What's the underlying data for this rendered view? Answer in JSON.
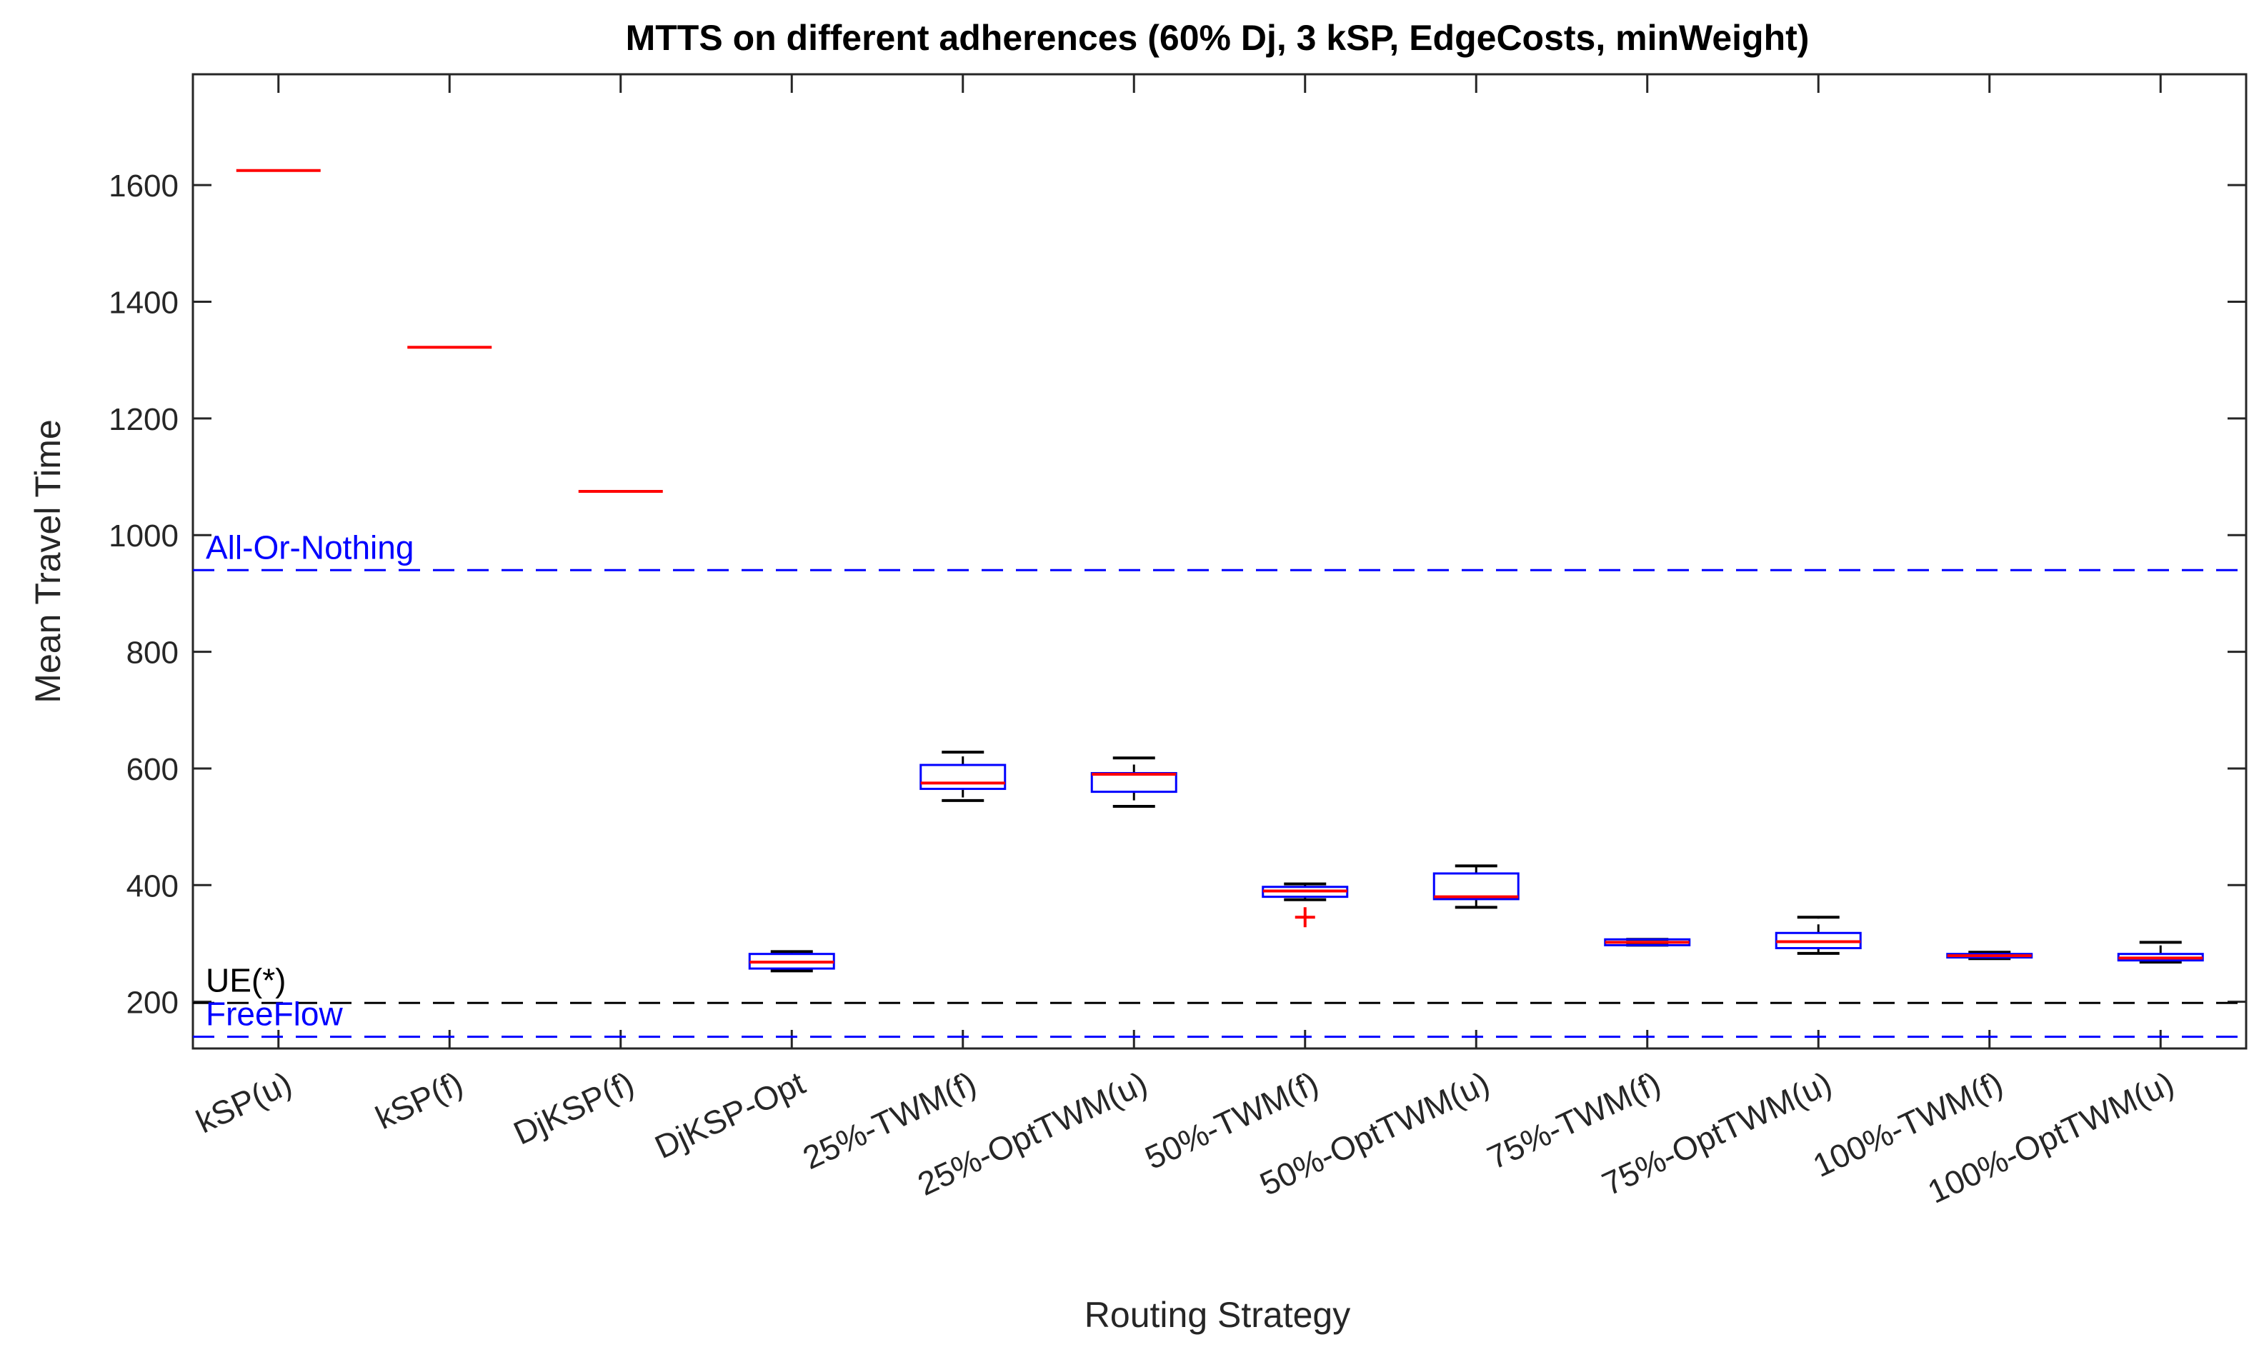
{
  "chart_data": {
    "type": "box",
    "title": "MTTS on different adherences (60% Dj, 3 kSP, EdgeCosts, minWeight)",
    "xlabel": "Routing Strategy",
    "ylabel": "Mean Travel Time",
    "ylim": [
      120,
      1790
    ],
    "yticks": [
      200,
      400,
      600,
      800,
      1000,
      1200,
      1400,
      1600
    ],
    "ytick_labels": [
      "200",
      "400",
      "600",
      "800",
      "1000",
      "1200",
      "1400",
      "1600"
    ],
    "grid": false,
    "categories": [
      "kSP(u)",
      "kSP(f)",
      "DjKSP(f)",
      "DjKSP-Opt",
      "25%-TWM(f)",
      "25%-OptTWM(u)",
      "50%-TWM(f)",
      "50%-OptTWM(u)",
      "75%-TWM(f)",
      "75%-OptTWM(u)",
      "100%-TWM(f)",
      "100%-OptTWM(u)"
    ],
    "boxes": [
      {
        "category": "kSP(u)",
        "whisker_low": 1625,
        "q1": 1625,
        "median": 1625,
        "q3": 1625,
        "whisker_high": 1625,
        "outliers": []
      },
      {
        "category": "kSP(f)",
        "whisker_low": 1322,
        "q1": 1322,
        "median": 1322,
        "q3": 1322,
        "whisker_high": 1322,
        "outliers": []
      },
      {
        "category": "DjKSP(f)",
        "whisker_low": 1075,
        "q1": 1075,
        "median": 1075,
        "q3": 1075,
        "whisker_high": 1075,
        "outliers": []
      },
      {
        "category": "DjKSP-Opt",
        "whisker_low": 253,
        "q1": 257,
        "median": 268,
        "q3": 282,
        "whisker_high": 286,
        "outliers": []
      },
      {
        "category": "25%-TWM(f)",
        "whisker_low": 545,
        "q1": 565,
        "median": 575,
        "q3": 606,
        "whisker_high": 628,
        "outliers": []
      },
      {
        "category": "25%-OptTWM(u)",
        "whisker_low": 535,
        "q1": 560,
        "median": 590,
        "q3": 592,
        "whisker_high": 618,
        "outliers": []
      },
      {
        "category": "50%-TWM(f)",
        "whisker_low": 375,
        "q1": 380,
        "median": 390,
        "q3": 397,
        "whisker_high": 402,
        "outliers": [
          345
        ]
      },
      {
        "category": "50%-OptTWM(u)",
        "whisker_low": 362,
        "q1": 376,
        "median": 380,
        "q3": 420,
        "whisker_high": 433,
        "outliers": []
      },
      {
        "category": "75%-TWM(f)",
        "whisker_low": 297,
        "q1": 297,
        "median": 302,
        "q3": 307,
        "whisker_high": 307,
        "outliers": []
      },
      {
        "category": "75%-OptTWM(u)",
        "whisker_low": 283,
        "q1": 292,
        "median": 303,
        "q3": 318,
        "whisker_high": 345,
        "outliers": []
      },
      {
        "category": "100%-TWM(f)",
        "whisker_low": 274,
        "q1": 276,
        "median": 279,
        "q3": 282,
        "whisker_high": 285,
        "outliers": []
      },
      {
        "category": "100%-OptTWM(u)",
        "whisker_low": 268,
        "q1": 271,
        "median": 275,
        "q3": 282,
        "whisker_high": 302,
        "outliers": []
      }
    ],
    "reference_lines": [
      {
        "label": "All-Or-Nothing",
        "value": 940,
        "color": "#0000ff",
        "style": "dashed"
      },
      {
        "label": "UE(*)",
        "value": 198,
        "color": "#000000",
        "style": "dashed"
      },
      {
        "label": "FreeFlow",
        "value": 140,
        "color": "#0000ff",
        "style": "dashed"
      }
    ],
    "colors": {
      "box": "#0000ff",
      "median": "#ff0000",
      "whisker": "#000000",
      "outlier": "#ff0000",
      "axis": "#262626"
    }
  }
}
